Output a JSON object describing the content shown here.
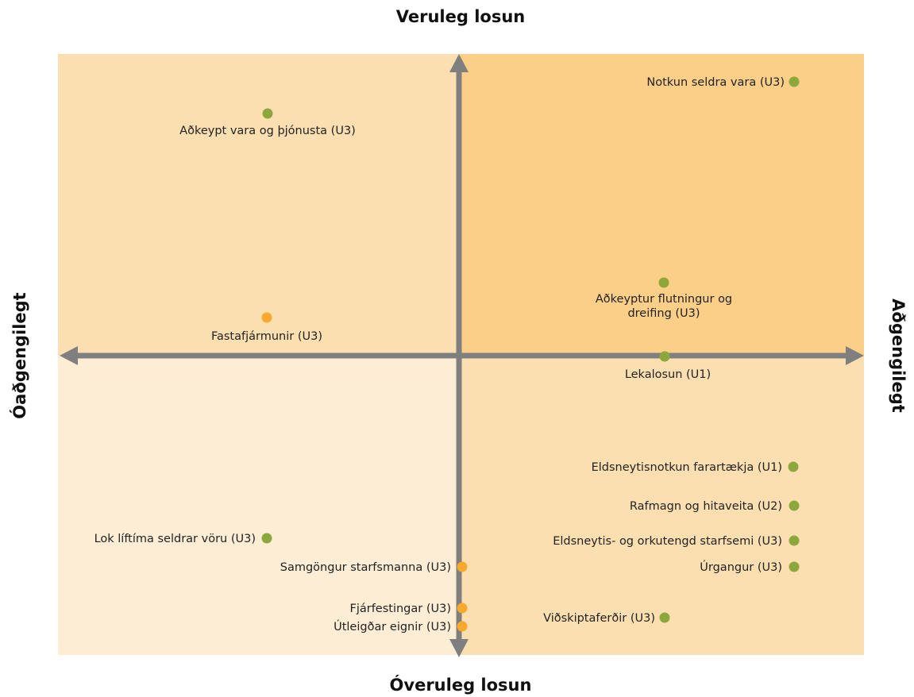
{
  "axes": {
    "top": "Veruleg losun",
    "bottom": "Óveruleg losun",
    "left": "Óaðgengilegt",
    "right": "Aðgengilegt"
  },
  "nodes": [
    {
      "label": "Notkun seldra vara (U3)",
      "color": "#8ca83c"
    },
    {
      "label": "Aðkeypt vara og þjónusta (U3)",
      "color": "#8ca83c"
    },
    {
      "label": "Aðkeyptur flutningur og dreifing (U3)",
      "color": "#8ca83c"
    },
    {
      "label": "Fastafjármunir (U3)",
      "color": "#f7a92e"
    },
    {
      "label": "Lekalosun (U1)",
      "color": "#8ca83c"
    },
    {
      "label": "Eldsneytisnotkun farartækja (U1)",
      "color": "#8ca83c"
    },
    {
      "label": "Rafmagn og hitaveita (U2)",
      "color": "#8ca83c"
    },
    {
      "label": "Eldsneytis- og orkutengd starfsemi (U3)",
      "color": "#8ca83c"
    },
    {
      "label": "Úrgangur (U3)",
      "color": "#8ca83c"
    },
    {
      "label": "Lok líftíma seldrar vöru (U3)",
      "color": "#8ca83c"
    },
    {
      "label": "Samgöngur starfsmanna (U3)",
      "color": "#f7a92e"
    },
    {
      "label": "Fjárfestingar (U3)",
      "color": "#f7a92e"
    },
    {
      "label": "Útleigðar eignir (U3)",
      "color": "#f7a92e"
    },
    {
      "label": "Viðskiptaferðir (U3)",
      "color": "#8ca83c"
    }
  ]
}
